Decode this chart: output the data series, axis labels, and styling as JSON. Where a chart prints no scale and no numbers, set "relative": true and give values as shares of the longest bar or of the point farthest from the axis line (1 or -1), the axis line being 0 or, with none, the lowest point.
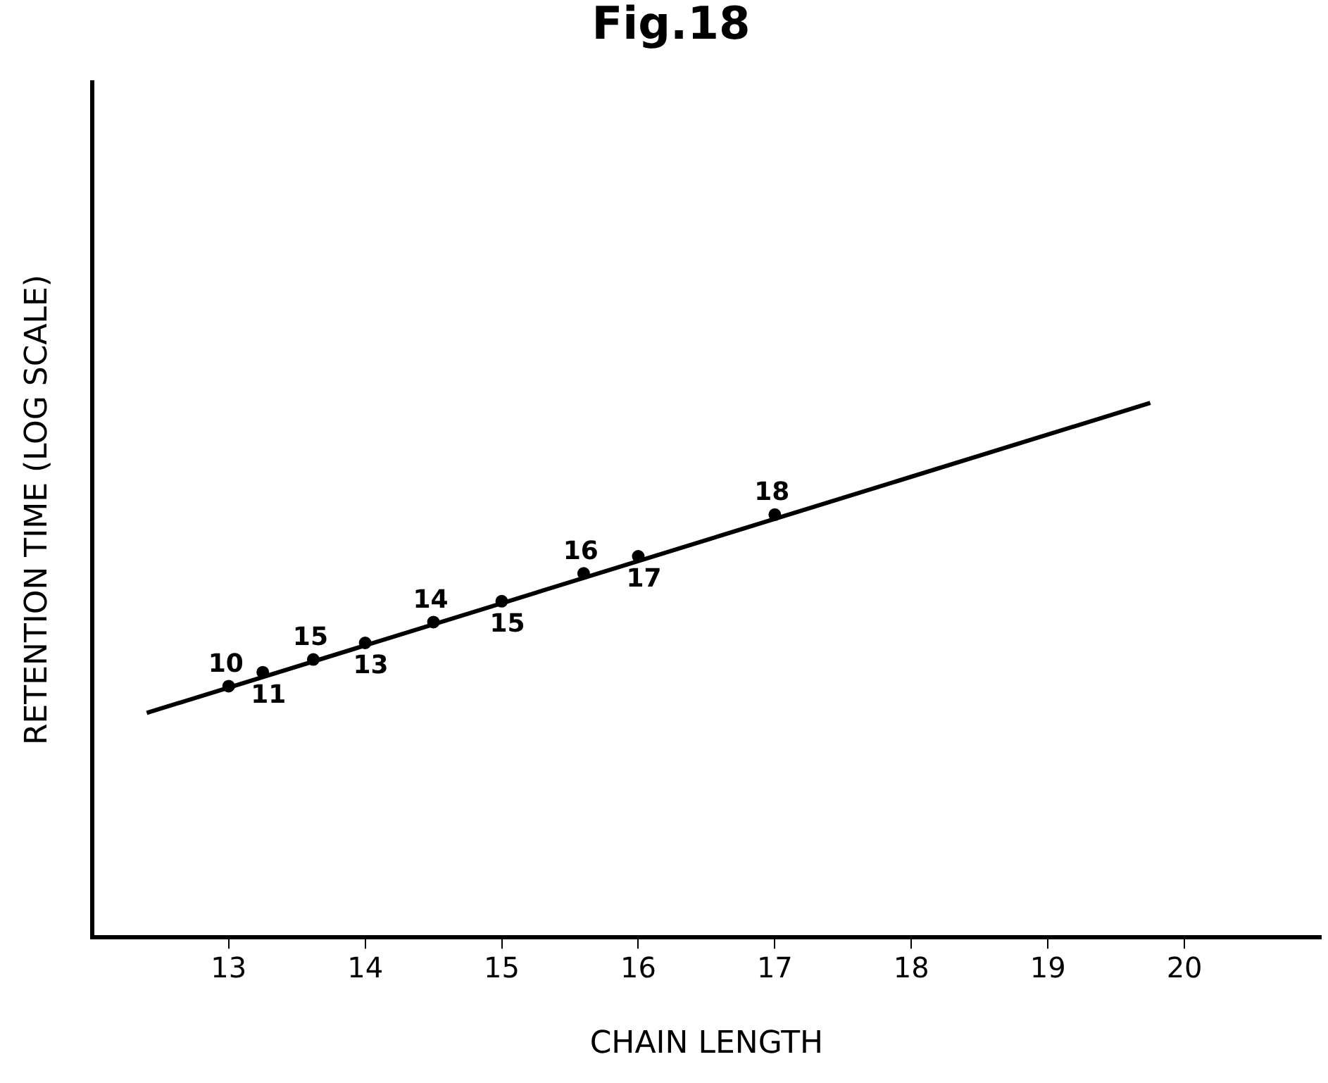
{
  "chart_data": {
    "type": "scatter",
    "title": "Fig.18",
    "xlabel": "CHAIN LENGTH",
    "ylabel": "RETENTION TIME (LOG SCALE)",
    "relative": true,
    "xlim": [
      12,
      21
    ],
    "xticks": [
      13,
      14,
      15,
      16,
      17,
      18,
      19,
      20
    ],
    "tick_labels": "x",
    "grid": false,
    "legend": false,
    "marker": "circle",
    "series": [
      {
        "type": "line",
        "marker": "none",
        "x": [
          12.4,
          19.75
        ],
        "values": [
          0.42,
          1.0
        ],
        "color": "#000000"
      },
      {
        "x": [
          13,
          13.25,
          13.62,
          14,
          14.5,
          15,
          15.6,
          16,
          17
        ],
        "values": [
          0.47,
          0.496,
          0.52,
          0.551,
          0.59,
          0.629,
          0.681,
          0.713,
          0.791
        ],
        "color": "#000000"
      }
    ],
    "annotations": [
      {
        "text": "10",
        "x": 13,
        "y": 0.47
      },
      {
        "text": "11",
        "x": 13.25,
        "y": 0.496
      },
      {
        "text": "15",
        "x": 13.62,
        "y": 0.52
      },
      {
        "text": "13",
        "x": 14,
        "y": 0.551
      },
      {
        "text": "14",
        "x": 14.5,
        "y": 0.59
      },
      {
        "text": "15",
        "x": 15,
        "y": 0.629
      },
      {
        "text": "16",
        "x": 15.6,
        "y": 0.681
      },
      {
        "text": "17",
        "x": 16,
        "y": 0.713
      },
      {
        "text": "18",
        "x": 17,
        "y": 0.791
      }
    ]
  }
}
